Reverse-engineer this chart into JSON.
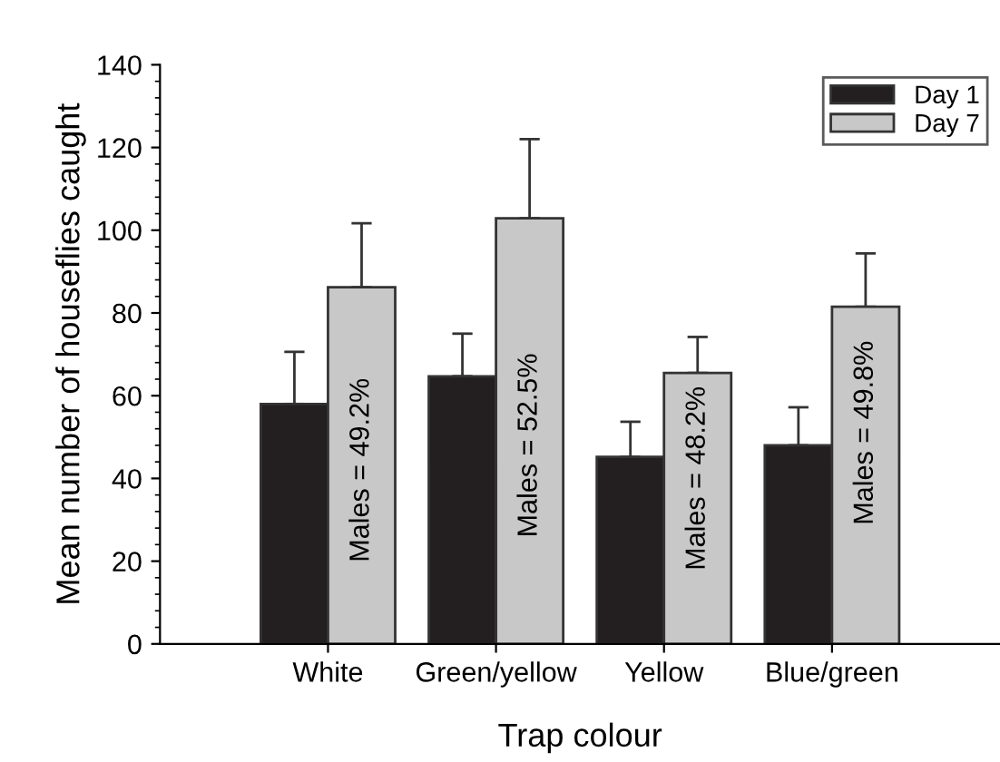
{
  "chart_data": {
    "type": "bar",
    "xlabel": "Trap colour",
    "ylabel": "Mean number of houseflies caught",
    "categories": [
      "White",
      "Green/yellow",
      "Yellow",
      "Blue/green"
    ],
    "series": [
      {
        "name": "Day 1",
        "color": "#231f20",
        "values": [
          58,
          64.7,
          45.2,
          48
        ],
        "errors": [
          [
            58,
            70.6
          ],
          [
            64.7,
            75
          ],
          [
            45.2,
            53.7
          ],
          [
            48,
            57.2
          ]
        ]
      },
      {
        "name": "Day 7",
        "color": "#c8c8c8",
        "values": [
          86.2,
          102.9,
          65.5,
          81.5
        ],
        "errors": [
          [
            86.2,
            101.7
          ],
          [
            102.9,
            122
          ],
          [
            65.5,
            74.2
          ],
          [
            81.5,
            94.4
          ]
        ]
      }
    ],
    "ylim": [
      0,
      140
    ],
    "yticks": [
      0,
      20,
      40,
      60,
      80,
      100,
      120,
      140
    ],
    "annotations": [
      {
        "text": "Males = 49.2%",
        "x": "White",
        "y": 42
      },
      {
        "text": "Males = 52.5%",
        "x": "Green/yellow",
        "y": 48
      },
      {
        "text": "Males = 48.2%",
        "x": "Yellow",
        "y": 40
      },
      {
        "text": "Males = 49.8%",
        "x": "Blue/green",
        "y": 51
      }
    ],
    "legend": "top right",
    "grid": false
  }
}
